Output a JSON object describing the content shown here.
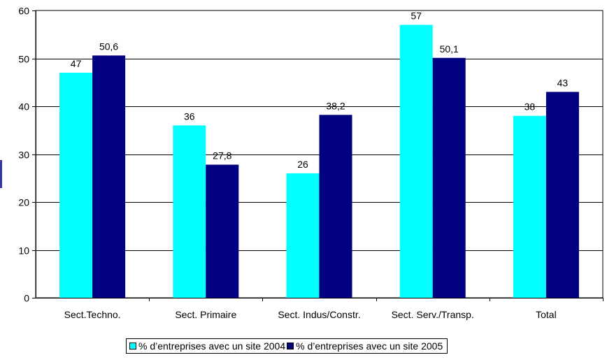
{
  "chart_data": {
    "type": "bar",
    "categories": [
      "Sect.Techno.",
      "Sect. Primaire",
      "Sect. Indus/Constr.",
      "Sect. Serv./Transp.",
      "Total"
    ],
    "series": [
      {
        "name": "% d’entreprises avec un site 2004",
        "values": [
          47,
          36,
          26,
          57,
          38
        ],
        "labels": [
          "47",
          "36",
          "26",
          "57",
          "38"
        ],
        "color": "#00ffff"
      },
      {
        "name": "% d’entreprises avec un site 2005",
        "values": [
          50.6,
          27.8,
          38.2,
          50.1,
          43
        ],
        "labels": [
          "50,6",
          "27,8",
          "38,2",
          "50,1",
          "43"
        ],
        "color": "#000080"
      }
    ],
    "yticks": [
      "0",
      "10",
      "20",
      "30",
      "40",
      "50",
      "60"
    ],
    "ylim": [
      0,
      60
    ],
    "grid": true,
    "legend_position": "bottom"
  },
  "colors": {
    "left_marker": "#3333aa"
  }
}
